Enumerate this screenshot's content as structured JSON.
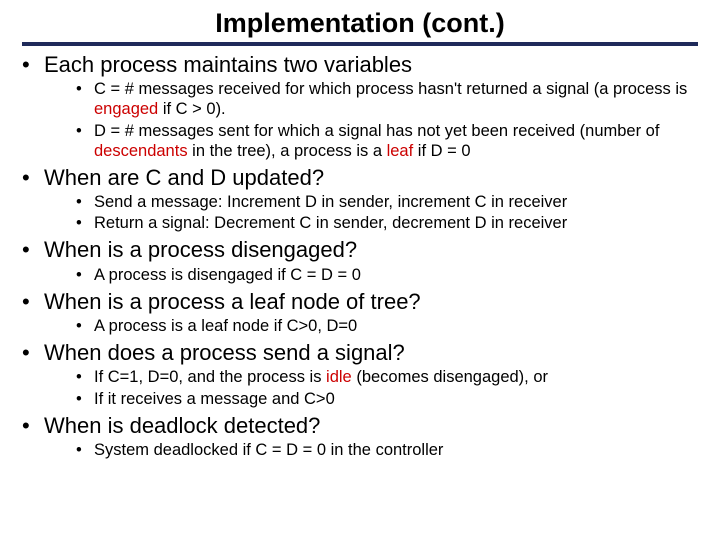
{
  "title": "Implementation (cont.)",
  "bullets": [
    {
      "text": "Each process maintains two variables",
      "sub": [
        {
          "pre": "C = # messages received for which process hasn't returned a signal (a process is ",
          "red": "engaged",
          "post": " if  C > 0)."
        },
        {
          "pre": "D = # messages sent for which a signal has not yet been received (number of ",
          "red": "descendants",
          "mid": " in the tree), a process is a ",
          "red2": "leaf",
          "post": " if D = 0"
        }
      ]
    },
    {
      "text": "When are C and D updated?",
      "sub": [
        {
          "pre": "Send a message: Increment D in sender, increment C in receiver"
        },
        {
          "pre": "Return a signal: Decrement C in sender, decrement D in receiver"
        }
      ]
    },
    {
      "text": "When is a process disengaged?",
      "sub": [
        {
          "pre": "A process is disengaged if C = D = 0"
        }
      ]
    },
    {
      "text": "When is a process a leaf node of tree?",
      "sub": [
        {
          "pre": "A process is a leaf node if C>0, D=0"
        }
      ]
    },
    {
      "text": "When does a process send a signal?",
      "sub": [
        {
          "pre": "If C=1, D=0, and the process is ",
          "red": "idle",
          "post": " (becomes disengaged), or"
        },
        {
          "pre": "If it receives a message and C>0"
        }
      ]
    },
    {
      "text": "When is deadlock detected?",
      "sub": [
        {
          "pre": "System deadlocked if C = D = 0 in the controller"
        }
      ]
    }
  ]
}
